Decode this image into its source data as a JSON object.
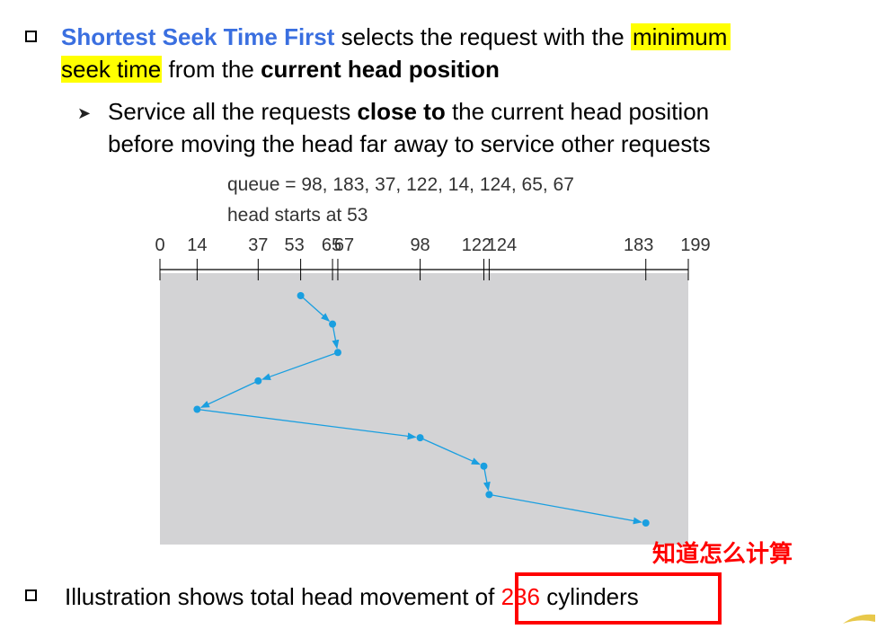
{
  "bullet1": {
    "term": "Shortest Seek Time First",
    "text1": " selects the request with the ",
    "highlight1": "minimum",
    "highlight2": "seek time",
    "text2": " from the ",
    "bold": "current head position"
  },
  "sub_bullet": {
    "text1": "Service all the requests ",
    "bold": "close to",
    "text2": " the current head position",
    "line2": "before moving the head far away to service other requests"
  },
  "diagram": {
    "queue_text": "queue = 98, 183, 37, 122, 14, 124, 65, 67",
    "head_text": "head starts at 53",
    "ticks": [
      0,
      14,
      37,
      53,
      65,
      67,
      98,
      122,
      124,
      183,
      199
    ],
    "path": [
      53,
      65,
      67,
      37,
      14,
      98,
      122,
      124,
      183
    ],
    "colors": {
      "background": "#d3d3d5",
      "path": "#1a9fe0",
      "axis": "#000000"
    }
  },
  "note": "知道怎么计算",
  "bullet2": {
    "text1": "Illustration shows total head movement of ",
    "value": "236",
    "text2": " cylinders"
  }
}
